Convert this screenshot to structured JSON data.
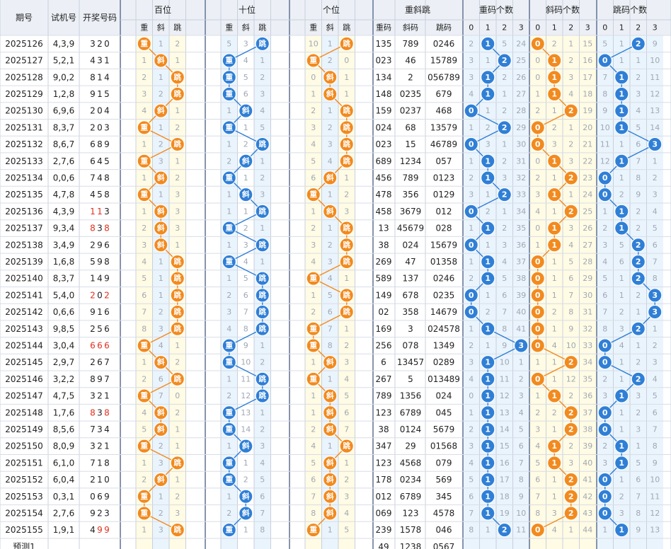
{
  "headers": {
    "period": "期号",
    "test": "试机号",
    "draw": "开奖号码",
    "hundreds": "百位",
    "tens": "十位",
    "ones": "个位",
    "summary": "重斜跳",
    "zhong_count": "重码个数",
    "xie_count": "斜码个数",
    "tiao_count": "跳码个数",
    "sub": [
      "重",
      "斜",
      "跳"
    ],
    "sum_sub": [
      "重码",
      "斜码",
      "跳码"
    ],
    "count_sub": [
      "0",
      "1",
      "2",
      "3"
    ]
  },
  "labels": {
    "zhong": "重",
    "xie": "斜",
    "tiao": "跳"
  },
  "colors": {
    "orange": "#f28a1e",
    "blue": "#2f7fd6",
    "red": "#e0301e",
    "header_bg": "#ecf0f6",
    "yellow_col": "#fffbe4",
    "blue_col": "#eaf4fd"
  },
  "rows": [
    {
      "period": "2025126",
      "test": "4,3,9",
      "draw": "320",
      "pos": [
        0,
        2,
        2
      ],
      "miss": [
        [
          0,
          1,
          2
        ],
        [
          5,
          3,
          0
        ],
        [
          10,
          1,
          0
        ]
      ],
      "zm": "135",
      "xm": "789",
      "tm": "0246",
      "zc": [
        2,
        1,
        5,
        24
      ],
      "xc": [
        0,
        2,
        1,
        15
      ],
      "tc": [
        5,
        1,
        2,
        9
      ]
    },
    {
      "period": "2025127",
      "test": "5,2,1",
      "draw": "431",
      "pos": [
        1,
        0,
        0
      ],
      "miss": [
        [
          1,
          1,
          1
        ],
        [
          0,
          4,
          1
        ],
        [
          11,
          2,
          0
        ]
      ],
      "zm": "023",
      "xm": "46",
      "tm": "15789",
      "zc": [
        3,
        1,
        6,
        25
      ],
      "xc": [
        0,
        3,
        2,
        16
      ],
      "tc": [
        6,
        1,
        1,
        10
      ]
    },
    {
      "period": "2025128",
      "test": "9,0,2",
      "draw": "814",
      "pos": [
        2,
        0,
        1
      ],
      "miss": [
        [
          2,
          1,
          0
        ],
        [
          0,
          5,
          2
        ],
        [
          0,
          3,
          1
        ]
      ],
      "zm": "134",
      "xm": "2",
      "tm": "056789",
      "zc": [
        3,
        1,
        2,
        26
      ],
      "xc": [
        0,
        1,
        3,
        17
      ],
      "tc": [
        7,
        1,
        2,
        11
      ]
    },
    {
      "period": "2025129",
      "test": "1,2,8",
      "draw": "915",
      "pos": [
        2,
        0,
        1
      ],
      "miss": [
        [
          3,
          2,
          0
        ],
        [
          0,
          6,
          3
        ],
        [
          1,
          0,
          1
        ]
      ],
      "zm": "148",
      "xm": "0235",
      "tm": "679",
      "zc": [
        4,
        1,
        1,
        27
      ],
      "xc": [
        1,
        1,
        4,
        18
      ],
      "tc": [
        8,
        1,
        3,
        12
      ]
    },
    {
      "period": "2025130",
      "test": "6,9,6",
      "draw": "204",
      "pos": [
        1,
        1,
        2
      ],
      "miss": [
        [
          4,
          0,
          1
        ],
        [
          1,
          0,
          4
        ],
        [
          2,
          1,
          0
        ]
      ],
      "zm": "159",
      "xm": "0237",
      "tm": "468",
      "zc": [
        0,
        1,
        2,
        28
      ],
      "xc": [
        2,
        1,
        2,
        19
      ],
      "tc": [
        9,
        1,
        4,
        13
      ]
    },
    {
      "period": "2025131",
      "test": "8,3,7",
      "draw": "203",
      "pos": [
        0,
        0,
        2
      ],
      "miss": [
        [
          0,
          1,
          2
        ],
        [
          0,
          1,
          5
        ],
        [
          3,
          2,
          0
        ]
      ],
      "zm": "024",
      "xm": "68",
      "tm": "13579",
      "zc": [
        1,
        2,
        2,
        29
      ],
      "xc": [
        0,
        2,
        1,
        20
      ],
      "tc": [
        10,
        1,
        5,
        14
      ]
    },
    {
      "period": "2025132",
      "test": "8,6,7",
      "draw": "689",
      "pos": [
        2,
        2,
        2
      ],
      "miss": [
        [
          1,
          2,
          0
        ],
        [
          1,
          2,
          0
        ],
        [
          4,
          3,
          0
        ]
      ],
      "zm": "023",
      "xm": "15",
      "tm": "46789",
      "zc": [
        0,
        3,
        1,
        30
      ],
      "xc": [
        0,
        3,
        2,
        21
      ],
      "tc": [
        11,
        1,
        6,
        3
      ]
    },
    {
      "period": "2025133",
      "test": "2,7,6",
      "draw": "645",
      "pos": [
        0,
        1,
        2
      ],
      "miss": [
        [
          0,
          3,
          1
        ],
        [
          2,
          1,
          1
        ],
        [
          5,
          4,
          0
        ]
      ],
      "zm": "689",
      "xm": "1234",
      "tm": "057",
      "zc": [
        1,
        1,
        2,
        31
      ],
      "xc": [
        0,
        1,
        3,
        22
      ],
      "tc": [
        12,
        1,
        7,
        1
      ]
    },
    {
      "period": "2025134",
      "test": "0,0,6",
      "draw": "748",
      "pos": [
        1,
        0,
        1
      ],
      "miss": [
        [
          1,
          1,
          2
        ],
        [
          0,
          1,
          2
        ],
        [
          6,
          1,
          1
        ]
      ],
      "zm": "456",
      "xm": "789",
      "tm": "0123",
      "zc": [
        2,
        1,
        3,
        32
      ],
      "xc": [
        2,
        1,
        2,
        23
      ],
      "tc": [
        0,
        1,
        8,
        2
      ]
    },
    {
      "period": "2025135",
      "test": "4,7,8",
      "draw": "458",
      "pos": [
        0,
        1,
        0
      ],
      "miss": [
        [
          0,
          1,
          3
        ],
        [
          1,
          1,
          3
        ],
        [
          0,
          1,
          2
        ]
      ],
      "zm": "478",
      "xm": "356",
      "tm": "0129",
      "zc": [
        3,
        1,
        2,
        33
      ],
      "xc": [
        3,
        1,
        1,
        24
      ],
      "tc": [
        0,
        2,
        9,
        3
      ]
    },
    {
      "period": "2025136",
      "test": "4,3,9",
      "draw": "113",
      "pos": [
        1,
        2,
        1
      ],
      "miss": [
        [
          1,
          2,
          3
        ],
        [
          1,
          1,
          2
        ],
        [
          1,
          1,
          3
        ]
      ],
      "zm": "458",
      "xm": "3679",
      "tm": "012",
      "zc": [
        0,
        2,
        1,
        34
      ],
      "xc": [
        4,
        1,
        2,
        25
      ],
      "tc": [
        1,
        3,
        2,
        4
      ]
    },
    {
      "period": "2025137",
      "test": "9,3,4",
      "draw": "838",
      "pos": [
        1,
        0,
        2
      ],
      "miss": [
        [
          2,
          1,
          3
        ],
        [
          0,
          2,
          1
        ],
        [
          2,
          1,
          1
        ]
      ],
      "zm": "13",
      "xm": "45679",
      "tm": "028",
      "zc": [
        1,
        1,
        2,
        35
      ],
      "xc": [
        0,
        1,
        3,
        26
      ],
      "tc": [
        2,
        4,
        2,
        5
      ]
    },
    {
      "period": "2025138",
      "test": "3,4,9",
      "draw": "296",
      "pos": [
        1,
        2,
        2
      ],
      "miss": [
        [
          3,
          1,
          1
        ],
        [
          1,
          3,
          0
        ],
        [
          3,
          2,
          0
        ]
      ],
      "zm": "38",
      "xm": "024",
      "tm": "15679",
      "zc": [
        0,
        1,
        3,
        36
      ],
      "xc": [
        1,
        1,
        4,
        27
      ],
      "tc": [
        3,
        5,
        2,
        6
      ]
    },
    {
      "period": "2025139",
      "test": "1,6,8",
      "draw": "598",
      "pos": [
        2,
        0,
        2
      ],
      "miss": [
        [
          4,
          1,
          0
        ],
        [
          0,
          4,
          1
        ],
        [
          4,
          3,
          0
        ]
      ],
      "zm": "269",
      "xm": "47",
      "tm": "01358",
      "zc": [
        1,
        1,
        4,
        37
      ],
      "xc": [
        0,
        1,
        5,
        28
      ],
      "tc": [
        4,
        6,
        2,
        7
      ]
    },
    {
      "period": "2025140",
      "test": "8,3,7",
      "draw": "149",
      "pos": [
        2,
        2,
        0
      ],
      "miss": [
        [
          5,
          1,
          0
        ],
        [
          1,
          5,
          0
        ],
        [
          0,
          4,
          1
        ]
      ],
      "zm": "589",
      "xm": "137",
      "tm": "0246",
      "zc": [
        2,
        1,
        5,
        38
      ],
      "xc": [
        0,
        1,
        6,
        29
      ],
      "tc": [
        5,
        1,
        1,
        8
      ]
    },
    {
      "period": "2025141",
      "test": "5,4,0",
      "draw": "202",
      "pos": [
        2,
        2,
        2
      ],
      "miss": [
        [
          6,
          1,
          0
        ],
        [
          2,
          6,
          0
        ],
        [
          1,
          5,
          0
        ]
      ],
      "zm": "149",
      "xm": "678",
      "tm": "0235",
      "zc": [
        0,
        1,
        6,
        39
      ],
      "xc": [
        0,
        1,
        7,
        30
      ],
      "tc": [
        6,
        1,
        2,
        3
      ]
    },
    {
      "period": "2025142",
      "test": "0,6,6",
      "draw": "916",
      "pos": [
        2,
        2,
        2
      ],
      "miss": [
        [
          7,
          2,
          0
        ],
        [
          3,
          7,
          0
        ],
        [
          2,
          6,
          0
        ]
      ],
      "zm": "02",
      "xm": "358",
      "tm": "14679",
      "zc": [
        0,
        2,
        7,
        40
      ],
      "xc": [
        0,
        2,
        8,
        31
      ],
      "tc": [
        7,
        2,
        1,
        3
      ]
    },
    {
      "period": "2025143",
      "test": "9,8,5",
      "draw": "256",
      "pos": [
        2,
        2,
        0
      ],
      "miss": [
        [
          8,
          3,
          0
        ],
        [
          4,
          8,
          0
        ],
        [
          0,
          7,
          1
        ]
      ],
      "zm": "169",
      "xm": "3",
      "tm": "024578",
      "zc": [
        1,
        1,
        8,
        41
      ],
      "xc": [
        0,
        1,
        9,
        32
      ],
      "tc": [
        8,
        3,
        2,
        1
      ]
    },
    {
      "period": "2025144",
      "test": "3,0,4",
      "draw": "666",
      "pos": [
        0,
        0,
        0
      ],
      "miss": [
        [
          0,
          4,
          1
        ],
        [
          0,
          9,
          1
        ],
        [
          0,
          8,
          2
        ]
      ],
      "zm": "256",
      "xm": "078",
      "tm": "1349",
      "zc": [
        2,
        1,
        9,
        3
      ],
      "xc": [
        0,
        4,
        10,
        33
      ],
      "tc": [
        0,
        4,
        1,
        2
      ]
    },
    {
      "period": "2025145",
      "test": "2,9,7",
      "draw": "267",
      "pos": [
        1,
        0,
        1
      ],
      "miss": [
        [
          1,
          5,
          2
        ],
        [
          0,
          10,
          2
        ],
        [
          1,
          1,
          3
        ]
      ],
      "zm": "6",
      "xm": "13457",
      "tm": "0289",
      "zc": [
        3,
        1,
        10,
        1
      ],
      "xc": [
        1,
        1,
        11,
        34
      ],
      "tc": [
        1,
        1,
        2,
        3
      ]
    },
    {
      "period": "2025146",
      "test": "3,2,2",
      "draw": "897",
      "pos": [
        2,
        2,
        0
      ],
      "miss": [
        [
          2,
          6,
          0
        ],
        [
          1,
          11,
          0
        ],
        [
          0,
          1,
          4
        ]
      ],
      "zm": "267",
      "xm": "5",
      "tm": "013489",
      "zc": [
        4,
        1,
        11,
        2
      ],
      "xc": [
        0,
        1,
        12,
        35
      ],
      "tc": [
        2,
        1,
        2,
        4
      ]
    },
    {
      "period": "2025147",
      "test": "4,7,5",
      "draw": "321",
      "pos": [
        0,
        2,
        1
      ],
      "miss": [
        [
          3,
          7,
          0
        ],
        [
          2,
          12,
          0
        ],
        [
          1,
          1,
          5
        ]
      ],
      "zm": "789",
      "xm": "1356",
      "tm": "024",
      "zc": [
        0,
        1,
        12,
        3
      ],
      "xc": [
        1,
        2,
        2,
        36
      ],
      "tc": [
        3,
        1,
        3,
        5
      ]
    },
    {
      "period": "2025148",
      "test": "1,7,6",
      "draw": "838",
      "pos": [
        1,
        0,
        1
      ],
      "miss": [
        [
          4,
          1,
          2
        ],
        [
          0,
          13,
          1
        ],
        [
          1,
          1,
          6
        ]
      ],
      "zm": "123",
      "xm": "6789",
      "tm": "045",
      "zc": [
        1,
        1,
        13,
        4
      ],
      "xc": [
        2,
        2,
        2,
        37
      ],
      "tc": [
        0,
        1,
        2,
        6
      ]
    },
    {
      "period": "2025149",
      "test": "8,5,6",
      "draw": "734",
      "pos": [
        1,
        0,
        1
      ],
      "miss": [
        [
          5,
          1,
          1
        ],
        [
          0,
          14,
          2
        ],
        [
          2,
          3,
          7
        ]
      ],
      "zm": "38",
      "xm": "0124",
      "tm": "5679",
      "zc": [
        2,
        1,
        14,
        5
      ],
      "xc": [
        3,
        1,
        1,
        38
      ],
      "tc": [
        1,
        1,
        3,
        7
      ]
    },
    {
      "period": "2025150",
      "test": "8,0,9",
      "draw": "321",
      "pos": [
        0,
        1,
        2
      ],
      "miss": [
        [
          0,
          2,
          1
        ],
        [
          1,
          0,
          3
        ],
        [
          4,
          1,
          0
        ]
      ],
      "zm": "347",
      "xm": "29",
      "tm": "01568",
      "zc": [
        3,
        1,
        15,
        6
      ],
      "xc": [
        4,
        1,
        2,
        39
      ],
      "tc": [
        2,
        1,
        1,
        8
      ]
    },
    {
      "period": "2025151",
      "test": "6,1,0",
      "draw": "718",
      "pos": [
        2,
        0,
        1
      ],
      "miss": [
        [
          1,
          3,
          0
        ],
        [
          0,
          1,
          4
        ],
        [
          5,
          1,
          1
        ]
      ],
      "zm": "123",
      "xm": "4568",
      "tm": "079",
      "zc": [
        4,
        1,
        16,
        7
      ],
      "xc": [
        5,
        1,
        3,
        40
      ],
      "tc": [
        3,
        1,
        5,
        9
      ]
    },
    {
      "period": "2025152",
      "test": "6,0,4",
      "draw": "210",
      "pos": [
        1,
        0,
        1
      ],
      "miss": [
        [
          2,
          1,
          1
        ],
        [
          0,
          2,
          5
        ],
        [
          6,
          1,
          2
        ]
      ],
      "zm": "178",
      "xm": "0234",
      "tm": "569",
      "zc": [
        5,
        1,
        17,
        8
      ],
      "xc": [
        6,
        1,
        2,
        41
      ],
      "tc": [
        0,
        1,
        6,
        10
      ]
    },
    {
      "period": "2025153",
      "test": "0,3,1",
      "draw": "069",
      "pos": [
        0,
        1,
        1
      ],
      "miss": [
        [
          0,
          1,
          2
        ],
        [
          1,
          1,
          6
        ],
        [
          7,
          1,
          3
        ]
      ],
      "zm": "012",
      "xm": "6789",
      "tm": "345",
      "zc": [
        6,
        1,
        18,
        9
      ],
      "xc": [
        7,
        1,
        2,
        42
      ],
      "tc": [
        0,
        2,
        7,
        11
      ]
    },
    {
      "period": "2025154",
      "test": "2,7,6",
      "draw": "923",
      "pos": [
        0,
        1,
        1
      ],
      "miss": [
        [
          0,
          2,
          3
        ],
        [
          2,
          1,
          7
        ],
        [
          8,
          1,
          4
        ]
      ],
      "zm": "069",
      "xm": "123",
      "tm": "4578",
      "zc": [
        7,
        1,
        19,
        10
      ],
      "xc": [
        8,
        3,
        2,
        43
      ],
      "tc": [
        0,
        3,
        8,
        12
      ]
    },
    {
      "period": "2025155",
      "test": "1,9,1",
      "draw": "499",
      "pos": [
        2,
        0,
        0
      ],
      "miss": [
        [
          1,
          3,
          0
        ],
        [
          0,
          1,
          8
        ],
        [
          0,
          1,
          5
        ]
      ],
      "zm": "239",
      "xm": "1578",
      "tm": "046",
      "zc": [
        8,
        1,
        2,
        11
      ],
      "xc": [
        0,
        4,
        1,
        44
      ],
      "tc": [
        1,
        1,
        9,
        13
      ]
    }
  ],
  "red_digits": [
    {
      "row": 10,
      "idx": [
        0,
        1
      ]
    },
    {
      "row": 11,
      "idx": [
        0,
        2
      ]
    },
    {
      "row": 15,
      "idx": [
        0,
        2
      ]
    },
    {
      "row": 18,
      "idx": [
        0,
        1,
        2
      ]
    },
    {
      "row": 22,
      "idx": [
        0,
        2
      ]
    },
    {
      "row": 29,
      "idx": [
        1,
        2
      ]
    }
  ],
  "predict": {
    "label": "预测1",
    "zm": "49",
    "xm": "1238",
    "tm": "0567"
  }
}
